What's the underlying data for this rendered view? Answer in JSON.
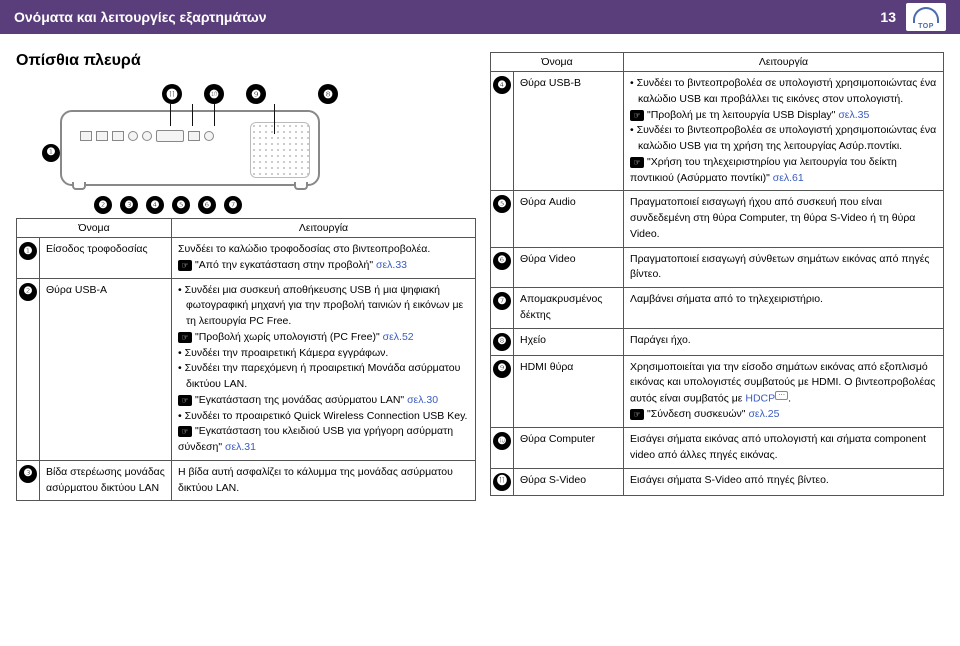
{
  "header": {
    "title": "Ονόματα και λειτουργίες εξαρτημάτων",
    "page_number": "13",
    "logo_label": "TOP"
  },
  "section_title_left": "Οπίσθια πλευρά",
  "callouts_top": [
    "⓫",
    "❿",
    "❾",
    "❽"
  ],
  "callout_left": "❶",
  "callouts_bottom": [
    "❷",
    "❸",
    "❹",
    "❺",
    "❻",
    "❼"
  ],
  "table_headers": {
    "name": "Όνομα",
    "func": "Λειτουργία"
  },
  "left_rows": [
    {
      "num": "❶",
      "name": "Είσοδος τροφοδοσίας",
      "func_lines": [
        {
          "t": "plain",
          "v": "Συνδέει το καλώδιο τροφοδοσίας στο βιντεοπροβολέα."
        },
        {
          "t": "ref",
          "v": "\"Από την εγκατάσταση στην προβολή\"",
          "page": "σελ.33"
        }
      ]
    },
    {
      "num": "❷",
      "name": "Θύρα USB-A",
      "func_lines": [
        {
          "t": "bullet",
          "v": "Συνδέει μια συσκευή αποθήκευσης USB ή μια ψηφιακή φωτογραφική μηχανή για την προβολή ταινιών ή εικόνων με τη λειτουργία PC Free."
        },
        {
          "t": "ref",
          "v": "\"Προβολή χωρίς υπολογιστή (PC Free)\"",
          "page": "σελ.52"
        },
        {
          "t": "bullet",
          "v": "Συνδέει την προαιρετική Κάμερα εγγράφων."
        },
        {
          "t": "bullet",
          "v": "Συνδέει την παρεχόμενη ή προαιρετική Μονάδα ασύρματου δικτύου LAN."
        },
        {
          "t": "ref",
          "v": "\"Εγκατάσταση της μονάδας ασύρματου LAN\"",
          "page": "σελ.30"
        },
        {
          "t": "bullet",
          "v": "Συνδέει το προαιρετικό Quick Wireless Connection USB Key."
        },
        {
          "t": "ref",
          "v": "\"Εγκατάσταση του κλειδιού USB για γρήγορη ασύρματη σύνδεση\"",
          "page": "σελ.31"
        }
      ]
    },
    {
      "num": "❸",
      "name": "Βίδα στερέωσης μονάδας ασύρματου δικτύου LAN",
      "func_lines": [
        {
          "t": "plain",
          "v": "Η βίδα αυτή ασφαλίζει το κάλυμμα της μονάδας ασύρματου δικτύου LAN."
        }
      ]
    }
  ],
  "right_rows": [
    {
      "num": "❹",
      "name": "Θύρα USB-B",
      "func_lines": [
        {
          "t": "bullet",
          "v": "Συνδέει το βιντεοπροβολέα σε υπολογιστή χρησιμοποιώντας ένα καλώδιο USB και προβάλλει τις εικόνες στον υπολογιστή."
        },
        {
          "t": "ref",
          "v": "\"Προβολή με τη λειτουργία USB Display\"",
          "page": "σελ.35"
        },
        {
          "t": "bullet",
          "v": "Συνδέει το βιντεοπροβολέα σε υπολογιστή χρησιμοποιώντας ένα καλώδιο USB για τη χρήση της λειτουργίας Ασύρ.ποντίκι."
        },
        {
          "t": "ref",
          "v": "\"Χρήση του τηλεχειριστηρίου για λειτουργία του δείκτη ποντικιού (Ασύρματο ποντίκι)\"",
          "page": "σελ.61"
        }
      ]
    },
    {
      "num": "❺",
      "name": "Θύρα Audio",
      "func_lines": [
        {
          "t": "plain",
          "v": "Πραγματοποιεί εισαγωγή ήχου από συσκευή που είναι συνδεδεμένη στη θύρα Computer, τη θύρα S-Video ή τη θύρα Video."
        }
      ]
    },
    {
      "num": "❻",
      "name": "Θύρα Video",
      "func_lines": [
        {
          "t": "plain",
          "v": "Πραγματοποιεί εισαγωγή σύνθετων σημάτων εικόνας από πηγές βίντεο."
        }
      ]
    },
    {
      "num": "❼",
      "name": "Απομακρυσμένος δέκτης",
      "func_lines": [
        {
          "t": "plain",
          "v": "Λαμβάνει σήματα από το τηλεχειριστήριο."
        }
      ]
    },
    {
      "num": "❽",
      "name": "Ηχείο",
      "func_lines": [
        {
          "t": "plain",
          "v": "Παράγει ήχο."
        }
      ]
    },
    {
      "num": "❾",
      "name": "HDMI θύρα",
      "func_lines": [
        {
          "t": "plain_hdcp",
          "v": "Χρησιμοποιείται για την είσοδο σημάτων εικόνας από εξοπλισμό εικόνας και υπολογιστές συμβατούς με HDMI. Ο βιντεοπροβολέας αυτός είναι συμβατός με "
        },
        {
          "t": "ref",
          "v": "\"Σύνδεση συσκευών\"",
          "page": "σελ.25"
        }
      ]
    },
    {
      "num": "❿",
      "name": "Θύρα Computer",
      "func_lines": [
        {
          "t": "plain",
          "v": "Εισάγει σήματα εικόνας από υπολογιστή και σήματα component video από άλλες πηγές εικόνας."
        }
      ]
    },
    {
      "num": "⓫",
      "name": "Θύρα S-Video",
      "func_lines": [
        {
          "t": "plain",
          "v": "Εισάγει σήματα S-Video από πηγές βίντεο."
        }
      ]
    }
  ],
  "hdcp_link_text": "HDCP",
  "colors": {
    "header_bg": "#5a3e7c",
    "link": "#3a5bbf",
    "border": "#555555"
  }
}
